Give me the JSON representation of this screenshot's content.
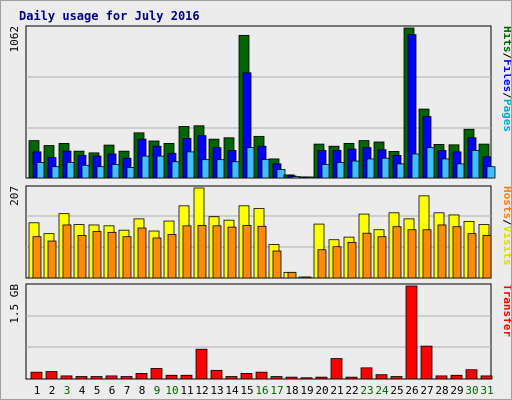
{
  "title": "Daily usage for July 2016",
  "chart_data": [
    {
      "type": "bar",
      "name": "hits-files-pages",
      "right_label_parts": [
        {
          "text": "Hits",
          "color": "#006400"
        },
        {
          "text": "/",
          "color": "#000000"
        },
        {
          "text": "Files",
          "color": "#0000ff"
        },
        {
          "text": "/",
          "color": "#000000"
        },
        {
          "text": "Pages",
          "color": "#00aacc"
        }
      ],
      "y_max_label": "1062",
      "ylim": [
        0,
        1062
      ],
      "grid": true,
      "x": [
        1,
        2,
        3,
        4,
        5,
        6,
        7,
        8,
        9,
        10,
        11,
        12,
        13,
        14,
        15,
        16,
        17,
        18,
        19,
        20,
        21,
        22,
        23,
        24,
        25,
        26,
        27,
        28,
        29,
        30,
        31
      ],
      "x_colors": [
        "#000000",
        "#000000",
        "#006400",
        "#000000",
        "#000000",
        "#000000",
        "#000000",
        "#000000",
        "#006400",
        "#006400",
        "#000000",
        "#000000",
        "#000000",
        "#000000",
        "#000000",
        "#006400",
        "#006400",
        "#000000",
        "#000000",
        "#000000",
        "#000000",
        "#000000",
        "#006400",
        "#006400",
        "#000000",
        "#000000",
        "#000000",
        "#000000",
        "#000000",
        "#006400",
        "#006400"
      ],
      "series": [
        {
          "color": "#006400",
          "values": [
            265,
            230,
            245,
            190,
            178,
            233,
            190,
            320,
            262,
            245,
            365,
            370,
            275,
            285,
            1010,
            295,
            135,
            22,
            8,
            240,
            225,
            245,
            265,
            255,
            188,
            1062,
            488,
            238,
            235,
            345,
            240
          ]
        },
        {
          "color": "#0000ff",
          "values": [
            185,
            145,
            190,
            160,
            155,
            170,
            140,
            275,
            225,
            175,
            280,
            300,
            215,
            195,
            745,
            225,
            100,
            15,
            4,
            195,
            195,
            205,
            215,
            200,
            160,
            1015,
            435,
            195,
            185,
            285,
            150
          ]
        },
        {
          "color": "#3fbfff",
          "values": [
            110,
            80,
            110,
            90,
            80,
            95,
            75,
            155,
            155,
            115,
            185,
            130,
            130,
            115,
            215,
            130,
            60,
            10,
            2,
            95,
            110,
            120,
            135,
            140,
            100,
            170,
            215,
            135,
            100,
            195,
            80
          ]
        }
      ]
    },
    {
      "type": "bar",
      "name": "hosts-visits",
      "right_label_parts": [
        {
          "text": "Hosts",
          "color": "#ff8000"
        },
        {
          "text": "/",
          "color": "#000000"
        },
        {
          "text": "Visits",
          "color": "#dddd00"
        }
      ],
      "y_max_label": "207",
      "ylim": [
        0,
        207
      ],
      "grid": true,
      "series": [
        {
          "color": "#ffff00",
          "values": [
            127,
            102,
            148,
            123,
            122,
            120,
            110,
            136,
            108,
            131,
            166,
            207,
            141,
            133,
            166,
            160,
            77,
            13,
            2,
            124,
            88,
            94,
            147,
            111,
            150,
            136,
            189,
            150,
            145,
            130,
            123
          ]
        },
        {
          "color": "#ff8c00",
          "values": [
            95,
            85,
            122,
            98,
            107,
            105,
            95,
            115,
            92,
            100,
            120,
            121,
            120,
            117,
            121,
            119,
            62,
            13,
            1,
            65,
            72,
            82,
            103,
            95,
            118,
            111,
            111,
            122,
            118,
            102,
            98
          ]
        }
      ]
    },
    {
      "type": "bar",
      "name": "transfer",
      "right_label_parts": [
        {
          "text": "Transfer",
          "color": "#ff0000"
        }
      ],
      "y_max_label": "1.5 GB",
      "ylim": [
        0,
        1.5
      ],
      "grid": true,
      "series": [
        {
          "color": "#ff0000",
          "values": [
            0.11,
            0.12,
            0.05,
            0.04,
            0.04,
            0.05,
            0.04,
            0.09,
            0.17,
            0.06,
            0.06,
            0.48,
            0.14,
            0.04,
            0.09,
            0.11,
            0.04,
            0.03,
            0.02,
            0.03,
            0.33,
            0.03,
            0.18,
            0.07,
            0.04,
            1.5,
            0.53,
            0.05,
            0.06,
            0.15,
            0.05
          ]
        }
      ]
    }
  ]
}
